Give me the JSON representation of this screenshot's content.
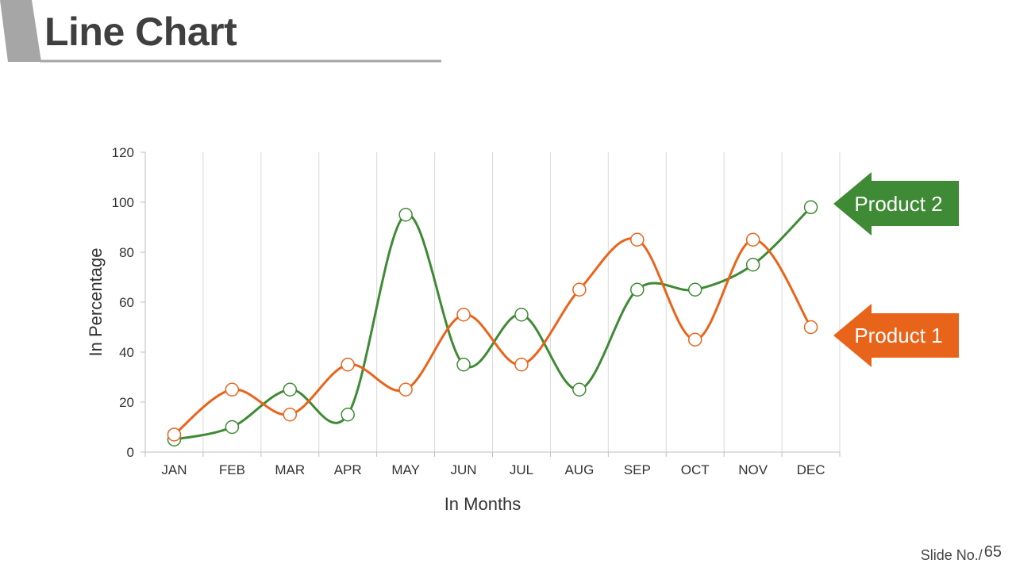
{
  "header": {
    "title": "Line Chart"
  },
  "footer": {
    "slide_label": "Slide No./",
    "slide_number": "65"
  },
  "colors": {
    "product1": "#E8641B",
    "product2": "#3F8A35",
    "grid": "#D9D9D9",
    "axis": "#BFBFBF"
  },
  "chart_data": {
    "type": "line",
    "xlabel": "In Months",
    "ylabel": "In Percentage",
    "categories": [
      "JAN",
      "FEB",
      "MAR",
      "APR",
      "MAY",
      "JUN",
      "JUL",
      "AUG",
      "SEP",
      "OCT",
      "NOV",
      "DEC"
    ],
    "ylim": [
      0,
      120
    ],
    "yticks": [
      0,
      20,
      40,
      60,
      80,
      100,
      120
    ],
    "grid": "vertical",
    "series": [
      {
        "name": "Product 1",
        "color": "#E8641B",
        "values": [
          7,
          25,
          15,
          35,
          25,
          55,
          35,
          65,
          85,
          45,
          85,
          50
        ]
      },
      {
        "name": "Product 2",
        "color": "#3F8A35",
        "values": [
          5,
          10,
          25,
          15,
          95,
          35,
          55,
          25,
          65,
          65,
          75,
          98
        ]
      }
    ]
  }
}
